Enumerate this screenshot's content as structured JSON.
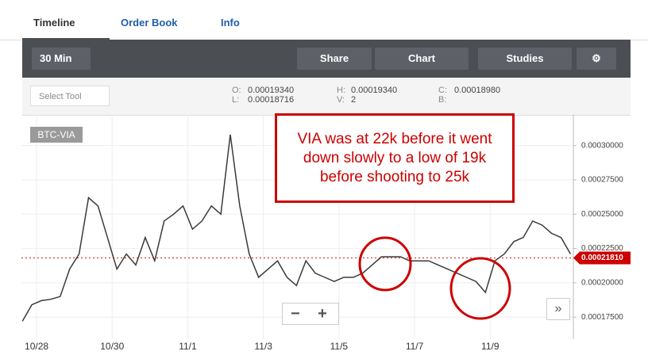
{
  "tabs": [
    "Timeline",
    "Order Book",
    "Info"
  ],
  "toolbar": {
    "interval": "30 Min",
    "share": "Share",
    "chart": "Chart",
    "studies": "Studies"
  },
  "select_tool": "Select Tool",
  "ohlc": {
    "o_key": "O:",
    "o": "0.00019340",
    "h_key": "H:",
    "h": "0.00019340",
    "c_key": "C:",
    "c": "0.00018980",
    "l_key": "L:",
    "l": "0.00018716",
    "v_key": "V:",
    "v": "2",
    "b_key": "B:"
  },
  "chart_data": {
    "type": "line",
    "symbol": "BTC-VIA",
    "annotation": [
      "VIA was at 22k before it went",
      "down slowly to a low of 19k",
      "before shooting to 25k"
    ],
    "x": [
      -0.375,
      -0.125,
      0.125,
      0.375,
      0.625,
      0.875,
      1.125,
      1.375,
      1.625,
      1.875,
      2.125,
      2.375,
      2.625,
      2.875,
      3.125,
      3.375,
      3.625,
      3.875,
      4.125,
      4.375,
      4.625,
      4.875,
      5.125,
      5.375,
      5.625,
      5.875,
      6.125,
      6.375,
      6.625,
      6.875,
      7.125,
      7.375,
      7.625,
      7.875,
      8.125,
      8.375,
      8.625,
      8.875,
      9.125,
      9.375,
      9.625,
      9.875,
      10.125,
      10.375,
      10.625,
      10.875,
      11.125,
      11.375,
      11.625,
      11.875,
      12.125,
      12.375,
      12.625,
      12.875,
      13.125,
      13.375,
      13.625,
      13.875,
      14.125
    ],
    "series": [
      {
        "color": "#3a3a3a",
        "values": [
          0.000172,
          0.000184,
          0.000187,
          0.000188,
          0.00019,
          0.00021,
          0.000221,
          0.000262,
          0.000256,
          0.000233,
          0.00021,
          0.000221,
          0.000213,
          0.000233,
          0.000216,
          0.000245,
          0.00025,
          0.000256,
          0.000239,
          0.000245,
          0.000256,
          0.00025,
          0.000308,
          0.000256,
          0.000221,
          0.000204,
          0.00021,
          0.000216,
          0.000204,
          0.000198,
          0.000216,
          0.000207,
          0.000204,
          0.000201,
          0.000204,
          0.000204,
          0.000207,
          0.000213,
          0.000219,
          0.000219,
          0.000219,
          0.000216,
          0.000216,
          0.000216,
          0.000213,
          0.00021,
          0.000207,
          0.000204,
          0.000201,
          0.000193,
          0.000216,
          0.000221,
          0.00023,
          0.000233,
          0.000245,
          0.000242,
          0.000236,
          0.000233,
          0.000221
        ]
      }
    ],
    "current_price": {
      "value": 0.0002181,
      "label": "0.00021810"
    },
    "xlim": [
      -0.4,
      14.2
    ],
    "xticks": [
      {
        "value": 0,
        "label": "10/28"
      },
      {
        "value": 2,
        "label": "10/30"
      },
      {
        "value": 4,
        "label": "11/1"
      },
      {
        "value": 6,
        "label": "11/3"
      },
      {
        "value": 8,
        "label": "11/5"
      },
      {
        "value": 10,
        "label": "11/7"
      },
      {
        "value": 12,
        "label": "11/9"
      }
    ],
    "ylim": [
      0.000163,
      0.00032
    ],
    "yticks": [
      {
        "value": 0.000175,
        "label": "0.00017500"
      },
      {
        "value": 0.0002,
        "label": "0.00020000"
      },
      {
        "value": 0.000225,
        "label": "0.00022500"
      },
      {
        "value": 0.00025,
        "label": "0.00025000"
      },
      {
        "value": 0.000275,
        "label": "0.00027500"
      },
      {
        "value": 0.0003,
        "label": "0.00030000"
      }
    ],
    "grid": true
  }
}
